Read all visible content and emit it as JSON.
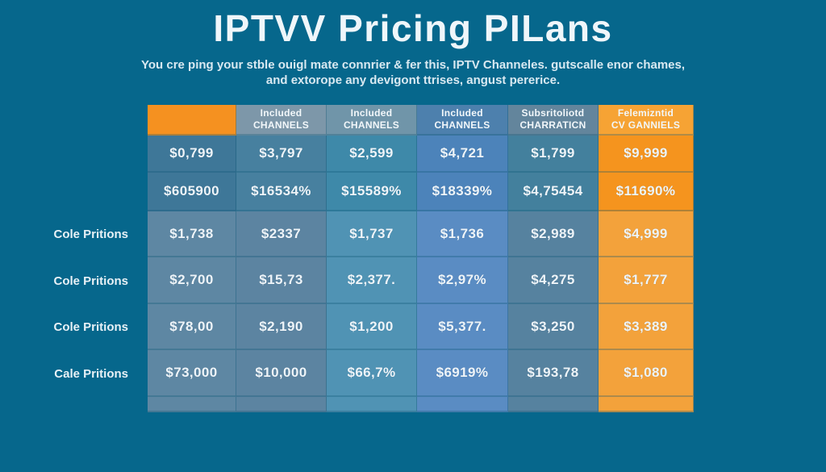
{
  "chart_data": {
    "type": "table",
    "title": "IPTVV Pricing PILans",
    "subtitle_line1": "You cre ping your stble ouigl mate connrier & fer this, IPTV Channeles. gutscalle enor chames,",
    "subtitle_line2": "and extorope any devigont ttrises, angust pererice.",
    "headers": [
      {
        "line1": "",
        "line2": ""
      },
      {
        "line1": "Included",
        "line2": "CHANNELS"
      },
      {
        "line1": "Included",
        "line2": "CHANNELS"
      },
      {
        "line1": "Included",
        "line2": "CHANNELS"
      },
      {
        "line1": "Subsritoliotd",
        "line2": "CHARRATICN"
      },
      {
        "line1": "Felemizntid",
        "line2": "CV GANNIELS"
      }
    ],
    "rows": [
      {
        "label": "",
        "values": [
          "$0,799",
          "$3,797",
          "$2,599",
          "$4,721",
          "$1,799",
          "$9,999"
        ]
      },
      {
        "label": "",
        "values": [
          "$605900",
          "$16534%",
          "$15589%",
          "$18339%",
          "$4,75454",
          "$11690%"
        ]
      },
      {
        "label": "Cole Pritions",
        "values": [
          "$1,738",
          "$2337",
          "$1,737",
          "$1,736",
          "$2,989",
          "$4,999"
        ]
      },
      {
        "label": "Cole Pritions",
        "values": [
          "$2,700",
          "$15,73",
          "$2,377.",
          "$2,97%",
          "$4,275",
          "$1,777"
        ]
      },
      {
        "label": "Cole Pritions",
        "values": [
          "$78,00",
          "$2,190",
          "$1,200",
          "$5,377.",
          "$3,250",
          "$3,389"
        ]
      },
      {
        "label": "Cale Pritions",
        "values": [
          "$73,000",
          "$10,000",
          "$66,7%",
          "$6919%",
          "$193,78",
          "$1,080"
        ]
      },
      {
        "label": "",
        "values": [
          "",
          "",
          "",
          "",
          "",
          ""
        ]
      }
    ]
  },
  "palette": {
    "background": "#06678c",
    "title_color": "#eff6fa",
    "subtitle_color": "#d9e9f1",
    "label_color": "#e8f1f6",
    "cell_text": "#eef4f8",
    "orange_accent": "#f5941f",
    "header_colors": [
      "#f59120",
      "#7d97a9",
      "#7095a9",
      "#4d80ad",
      "#63859c",
      "#f6a334"
    ],
    "body_colors_dark": [
      "#3e7798",
      "#47809f",
      "#3e89a9",
      "#4c83ba",
      "#43809d",
      "#f5941e"
    ],
    "body_colors_light": [
      "#5e87a3",
      "#5c84a1",
      "#5093b4",
      "#5a8cc3",
      "#56829f",
      "#f3a23b"
    ]
  }
}
